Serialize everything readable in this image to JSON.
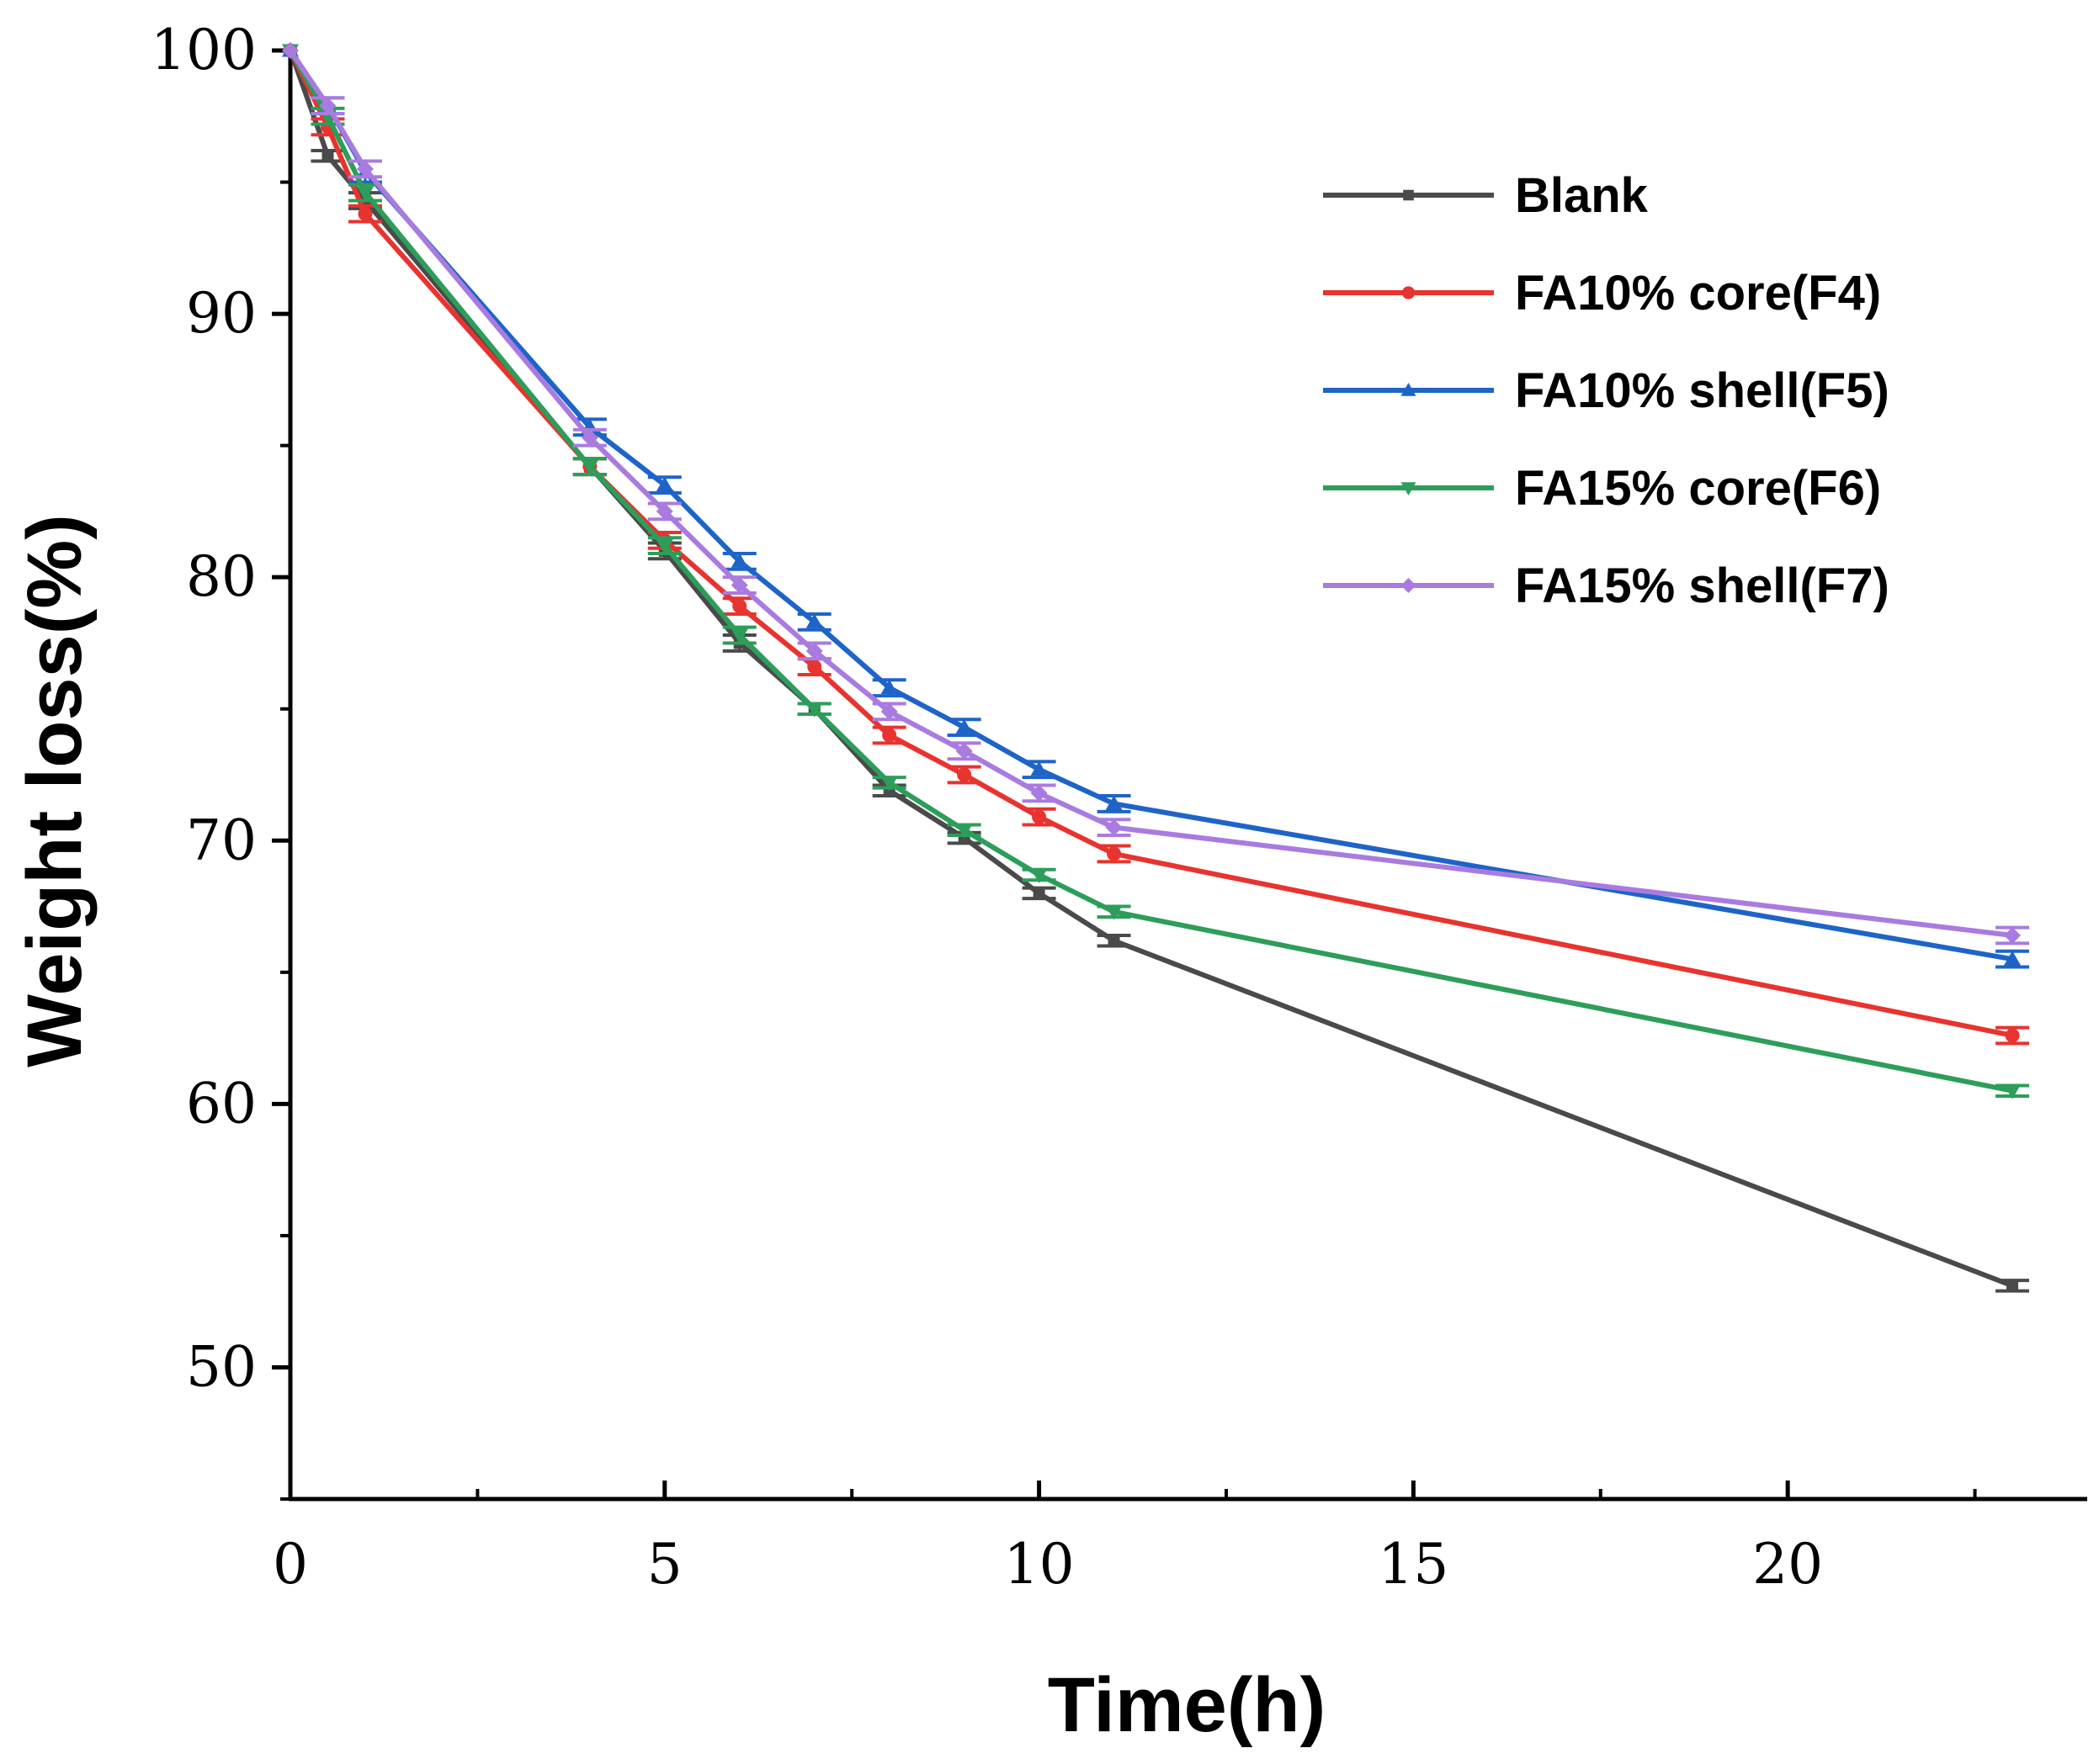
{
  "chart_data": {
    "type": "line",
    "title": "",
    "xlabel": "Time(h)",
    "ylabel": "Weight loss(%)",
    "xlim": [
      0,
      24
    ],
    "ylim": [
      45,
      100
    ],
    "xticks": [
      0,
      5,
      10,
      15,
      20
    ],
    "yticks": [
      50,
      60,
      70,
      80,
      90,
      100
    ],
    "x_minor_step": 2.5,
    "y_minor_step": 5,
    "grid": false,
    "legend_position": "top-right",
    "x": [
      0,
      0.5,
      1,
      4,
      5,
      6,
      7,
      8,
      9,
      10,
      11,
      23
    ],
    "series": [
      {
        "name": "Blank",
        "color": "#4a4a4a",
        "marker": "square",
        "values": [
          100,
          96.0,
          94.3,
          84.2,
          81.0,
          77.5,
          75.0,
          71.9,
          70.1,
          68.0,
          66.2,
          53.1
        ],
        "errors": [
          0,
          0.2,
          0.3,
          0.3,
          0.3,
          0.3,
          0.2,
          0.2,
          0.2,
          0.2,
          0.2,
          0.2
        ]
      },
      {
        "name": "FA10% core(F4)",
        "color": "#e8332f",
        "marker": "circle",
        "values": [
          100,
          97.1,
          93.8,
          84.2,
          81.4,
          78.9,
          76.6,
          74.0,
          72.5,
          70.9,
          69.5,
          62.6
        ],
        "errors": [
          0,
          0.3,
          0.3,
          0.3,
          0.3,
          0.3,
          0.3,
          0.3,
          0.3,
          0.3,
          0.3,
          0.3
        ]
      },
      {
        "name": "FA10% shell(F5)",
        "color": "#1e64c8",
        "marker": "triangle-up",
        "values": [
          100,
          97.9,
          95.4,
          85.7,
          83.5,
          80.6,
          78.3,
          75.8,
          74.3,
          72.7,
          71.4,
          65.5
        ],
        "errors": [
          0,
          0.3,
          0.4,
          0.3,
          0.3,
          0.3,
          0.3,
          0.3,
          0.3,
          0.3,
          0.3,
          0.3
        ]
      },
      {
        "name": "FA15% core(F6)",
        "color": "#2c9e5a",
        "marker": "triangle-down",
        "values": [
          100,
          97.5,
          94.6,
          84.2,
          81.2,
          77.8,
          75.0,
          72.2,
          70.4,
          68.7,
          67.3,
          60.5
        ],
        "errors": [
          0,
          0.3,
          0.3,
          0.3,
          0.3,
          0.3,
          0.2,
          0.2,
          0.2,
          0.2,
          0.2,
          0.2
        ]
      },
      {
        "name": "FA15% shell(F7)",
        "color": "#a97be0",
        "marker": "diamond",
        "values": [
          100,
          97.9,
          95.5,
          85.3,
          82.5,
          79.7,
          77.2,
          74.9,
          73.4,
          71.8,
          70.5,
          66.4
        ],
        "errors": [
          0,
          0.3,
          0.3,
          0.3,
          0.3,
          0.3,
          0.3,
          0.3,
          0.3,
          0.3,
          0.3,
          0.3
        ]
      }
    ]
  }
}
